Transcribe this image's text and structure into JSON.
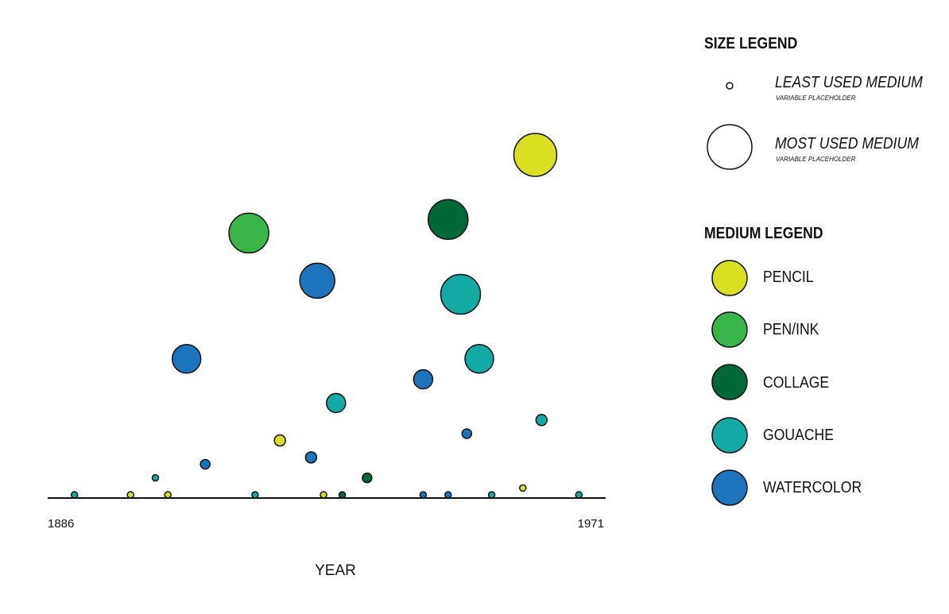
{
  "chart_data": {
    "type": "scatter",
    "xlabel": "YEAR",
    "xlim": [
      1886,
      1971
    ],
    "x_tick_labels": [
      "1886",
      "1971"
    ],
    "size_legend": {
      "title": "SIZE LEGEND",
      "items": [
        {
          "label": "LEAST USED MEDIUM",
          "sublabel": "VARIABLE PLACEHOLDER",
          "size": "small"
        },
        {
          "label": "MOST USED MEDIUM",
          "sublabel": "VARIABLE PLACEHOLDER",
          "size": "large"
        }
      ]
    },
    "medium_legend": {
      "title": "MEDIUM LEGEND",
      "items": [
        {
          "name": "PENCIL",
          "color": "#d9e021"
        },
        {
          "name": "PEN/INK",
          "color": "#39b54a"
        },
        {
          "name": "COLLAGE",
          "color": "#006837"
        },
        {
          "name": "GOUACHE",
          "color": "#12aaa2"
        },
        {
          "name": "WATERCOLOR",
          "color": "#1c75bc"
        }
      ]
    },
    "points": [
      {
        "year": 1888,
        "level": 0.0,
        "size": 1,
        "medium": "GOUACHE"
      },
      {
        "year": 1897,
        "level": 0.0,
        "size": 1,
        "medium": "PENCIL"
      },
      {
        "year": 1901,
        "level": 0.05,
        "size": 1,
        "medium": "GOUACHE"
      },
      {
        "year": 1903,
        "level": 0.0,
        "size": 1,
        "medium": "PENCIL"
      },
      {
        "year": 1906,
        "level": 0.4,
        "size": 5,
        "medium": "WATERCOLOR"
      },
      {
        "year": 1909,
        "level": 0.09,
        "size": 2,
        "medium": "WATERCOLOR"
      },
      {
        "year": 1917,
        "level": 0.0,
        "size": 1,
        "medium": "GOUACHE"
      },
      {
        "year": 1916,
        "level": 0.77,
        "size": 7,
        "medium": "PEN/INK"
      },
      {
        "year": 1921,
        "level": 0.16,
        "size": 3,
        "medium": "PENCIL"
      },
      {
        "year": 1926,
        "level": 0.11,
        "size": 3,
        "medium": "WATERCOLOR"
      },
      {
        "year": 1928,
        "level": 0.0,
        "size": 1,
        "medium": "PENCIL"
      },
      {
        "year": 1927,
        "level": 0.63,
        "size": 6,
        "medium": "WATERCOLOR"
      },
      {
        "year": 1930,
        "level": 0.27,
        "size": 4,
        "medium": "GOUACHE"
      },
      {
        "year": 1931,
        "level": 0.0,
        "size": 1,
        "medium": "COLLAGE"
      },
      {
        "year": 1935,
        "level": 0.05,
        "size": 2,
        "medium": "COLLAGE"
      },
      {
        "year": 1944,
        "level": 0.0,
        "size": 1,
        "medium": "WATERCOLOR"
      },
      {
        "year": 1944,
        "level": 0.34,
        "size": 4,
        "medium": "WATERCOLOR"
      },
      {
        "year": 1948,
        "level": 0.0,
        "size": 1,
        "medium": "WATERCOLOR"
      },
      {
        "year": 1948,
        "level": 0.81,
        "size": 7,
        "medium": "COLLAGE"
      },
      {
        "year": 1950,
        "level": 0.59,
        "size": 7,
        "medium": "GOUACHE"
      },
      {
        "year": 1951,
        "level": 0.18,
        "size": 2,
        "medium": "WATERCOLOR"
      },
      {
        "year": 1953,
        "level": 0.4,
        "size": 5,
        "medium": "GOUACHE"
      },
      {
        "year": 1955,
        "level": 0.0,
        "size": 1,
        "medium": "GOUACHE"
      },
      {
        "year": 1960,
        "level": 0.02,
        "size": 1,
        "medium": "PENCIL"
      },
      {
        "year": 1962,
        "level": 1.0,
        "size": 8,
        "medium": "PENCIL"
      },
      {
        "year": 1963,
        "level": 0.22,
        "size": 3,
        "medium": "GOUACHE"
      },
      {
        "year": 1969,
        "level": 0.0,
        "size": 1,
        "medium": "GOUACHE"
      }
    ]
  }
}
